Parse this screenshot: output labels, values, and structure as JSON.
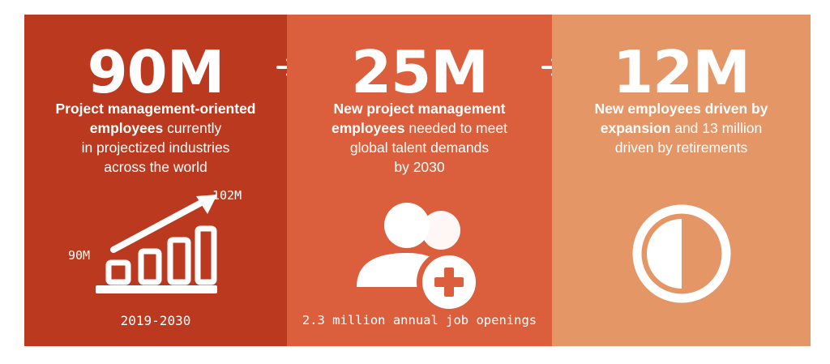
{
  "panels": [
    {
      "value": "90M",
      "desc_bold": "Project management-oriented employees",
      "desc_rest_1": " currently",
      "desc_rest_2": "in projectized industries",
      "desc_rest_3": "across the world",
      "chart_label_high": "102M",
      "chart_label_low": "90M",
      "footer": "2019-2030",
      "icon": "growth-bar-chart-icon",
      "color": "#bb3a1f"
    },
    {
      "value": "25M",
      "desc_bold": "New project management employees",
      "desc_rest_1": " needed to meet",
      "desc_rest_2": "global talent demands",
      "desc_rest_3": "by 2030",
      "footer": "2.3 million annual job openings",
      "icon": "add-people-icon",
      "color": "#dc5f3d"
    },
    {
      "value": "12M",
      "desc_bold_1": "New employees driven by",
      "desc_bold_2": "expansion",
      "desc_rest_1": " and 13 million",
      "desc_rest_2": "driven by retirements",
      "icon": "half-circle-icon",
      "color": "#e49667"
    }
  ],
  "arrow_icon": "right-arrow-icon"
}
